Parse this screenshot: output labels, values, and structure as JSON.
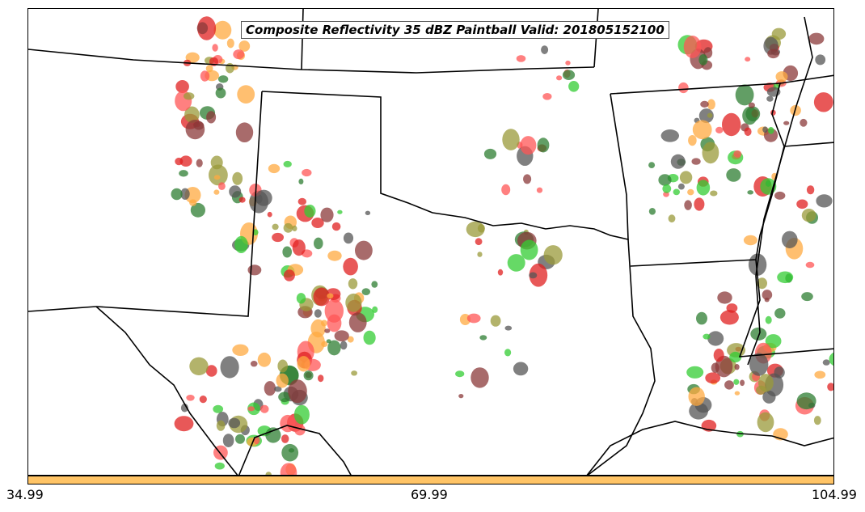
{
  "title": "Composite Reflectivity 35 dBZ Paintball Valid: 201805152100",
  "colorbar": {
    "color": "#ffc466",
    "ticks": [
      "34.99",
      "69.99",
      "104.99"
    ]
  },
  "map": {
    "features": [
      "state-borders",
      "coastline",
      "international-border"
    ],
    "paintball_colors": [
      "#e02020",
      "#ff5555",
      "#33cc33",
      "#ffa940",
      "#555555",
      "#8b3a3a",
      "#9a9a3a",
      "#2e7d32"
    ]
  }
}
